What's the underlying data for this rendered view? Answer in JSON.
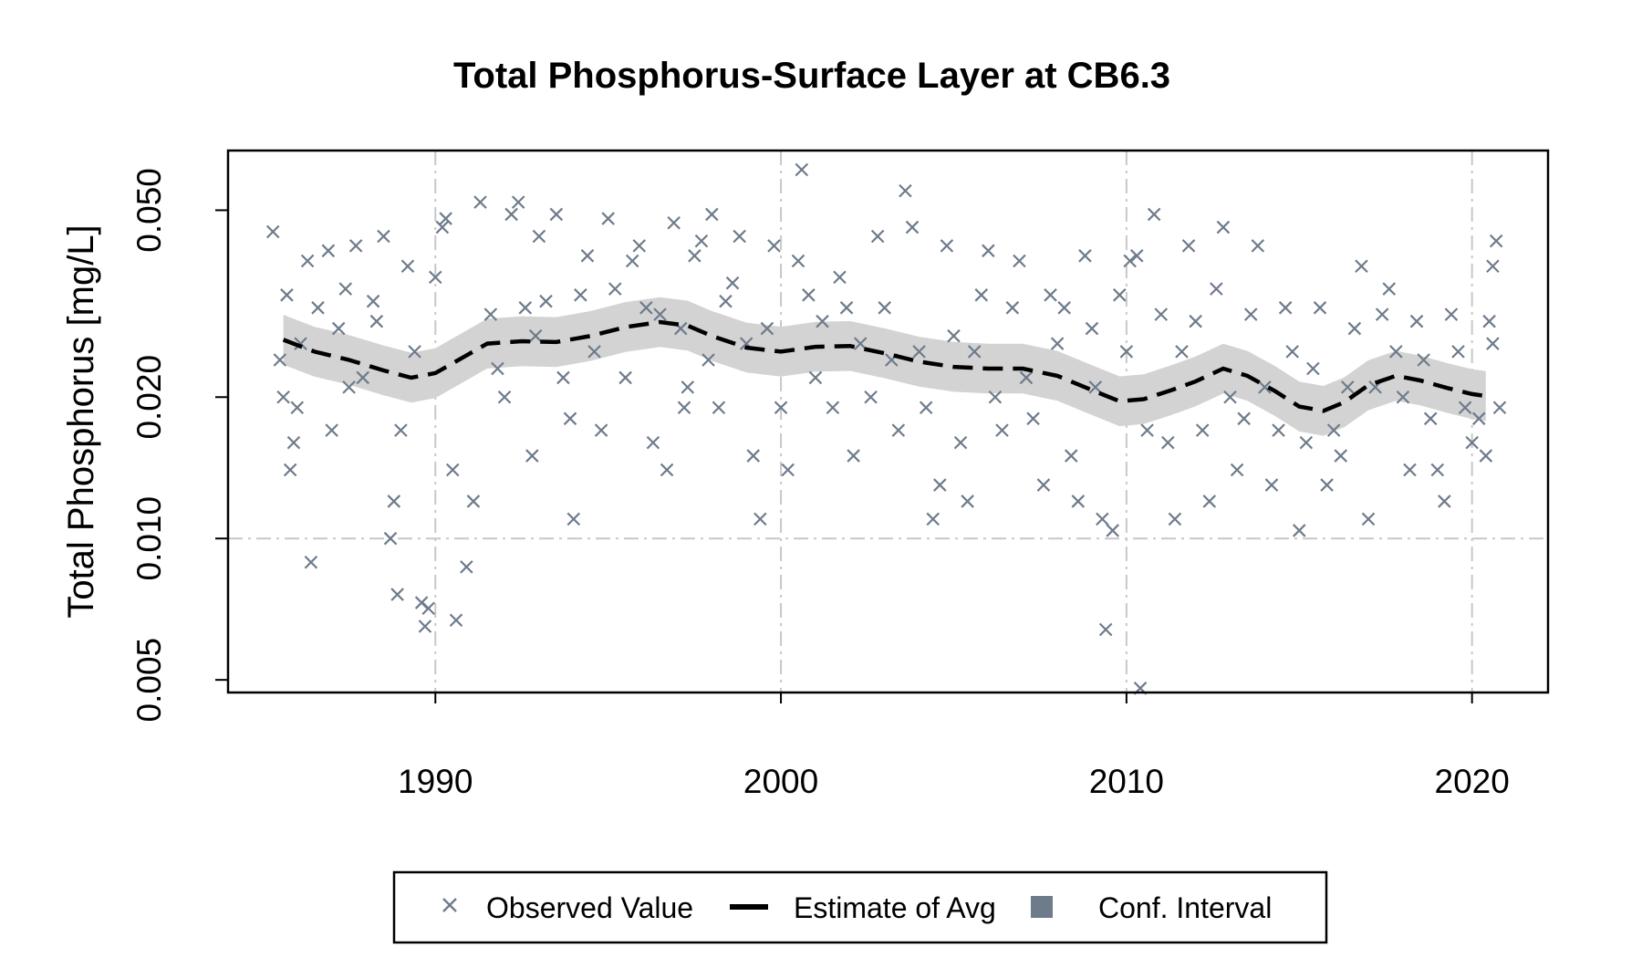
{
  "chart_data": {
    "type": "scatter",
    "title": "Total Phosphorus-Surface Layer at CB6.3",
    "ylabel": "Total Phosphorus [mg/L]",
    "xlabel": "",
    "y_scale": "log",
    "xlim": [
      1984.0,
      2022.2
    ],
    "ylim": [
      0.0047,
      0.067
    ],
    "x_ticks": [
      1990,
      2000,
      2010,
      2020
    ],
    "x_tick_labels": [
      "1990",
      "2000",
      "2010",
      "2020"
    ],
    "y_ticks": [
      0.005,
      0.01,
      0.02,
      0.05
    ],
    "y_tick_labels": [
      "0.005",
      "0.010",
      "0.020",
      "0.050"
    ],
    "gridlines": "dashed, at x ticks and y = 0.010",
    "legend": {
      "position": "bottom",
      "items": [
        {
          "label": "Observed Value",
          "symbol": "x-marker"
        },
        {
          "label": "Estimate of Avg",
          "symbol": "dashed-line"
        },
        {
          "label": "Conf. Interval",
          "symbol": "filled-square"
        }
      ]
    },
    "colors": {
      "observed": "#6e7b8b",
      "estimate": "#000000",
      "conf_interval": "#d3d3d3",
      "conf_interval_legend": "#6e7b8b",
      "grid": "#c8c8c8"
    },
    "series": [
      {
        "name": "Observed Value",
        "points": [
          [
            1985.3,
            0.045
          ],
          [
            1985.5,
            0.024
          ],
          [
            1985.6,
            0.02
          ],
          [
            1985.7,
            0.033
          ],
          [
            1985.8,
            0.014
          ],
          [
            1985.9,
            0.016
          ],
          [
            1986.0,
            0.019
          ],
          [
            1986.1,
            0.026
          ],
          [
            1986.3,
            0.039
          ],
          [
            1986.6,
            0.031
          ],
          [
            1986.9,
            0.041
          ],
          [
            1987.0,
            0.017
          ],
          [
            1987.2,
            0.028
          ],
          [
            1987.4,
            0.034
          ],
          [
            1987.7,
            0.042
          ],
          [
            1987.9,
            0.022
          ],
          [
            1988.2,
            0.032
          ],
          [
            1988.3,
            0.029
          ],
          [
            1988.5,
            0.044
          ],
          [
            1988.7,
            0.01
          ],
          [
            1988.8,
            0.012
          ],
          [
            1988.9,
            0.0076
          ],
          [
            1989.0,
            0.017
          ],
          [
            1989.2,
            0.038
          ],
          [
            1989.4,
            0.025
          ],
          [
            1989.6,
            0.0073
          ],
          [
            1989.7,
            0.0065
          ],
          [
            1989.8,
            0.0071
          ],
          [
            1990.0,
            0.036
          ],
          [
            1990.2,
            0.046
          ],
          [
            1990.3,
            0.048
          ],
          [
            1990.5,
            0.014
          ],
          [
            1990.6,
            0.0067
          ],
          [
            1990.9,
            0.0087
          ],
          [
            1991.1,
            0.012
          ],
          [
            1991.3,
            0.052
          ],
          [
            1991.6,
            0.03
          ],
          [
            1991.8,
            0.023
          ],
          [
            1992.0,
            0.02
          ],
          [
            1992.2,
            0.049
          ],
          [
            1992.4,
            0.052
          ],
          [
            1992.6,
            0.031
          ],
          [
            1992.8,
            0.015
          ],
          [
            1993.0,
            0.044
          ],
          [
            1993.2,
            0.032
          ],
          [
            1993.5,
            0.049
          ],
          [
            1993.7,
            0.022
          ],
          [
            1993.9,
            0.018
          ],
          [
            1994.0,
            0.011
          ],
          [
            1994.2,
            0.033
          ],
          [
            1994.4,
            0.04
          ],
          [
            1994.6,
            0.025
          ],
          [
            1994.8,
            0.017
          ],
          [
            1995.0,
            0.048
          ],
          [
            1995.2,
            0.034
          ],
          [
            1995.5,
            0.022
          ],
          [
            1995.7,
            0.039
          ],
          [
            1995.9,
            0.042
          ],
          [
            1996.1,
            0.031
          ],
          [
            1996.3,
            0.016
          ],
          [
            1996.5,
            0.03
          ],
          [
            1996.7,
            0.014
          ],
          [
            1996.9,
            0.047
          ],
          [
            1997.1,
            0.028
          ],
          [
            1997.3,
            0.021
          ],
          [
            1997.5,
            0.04
          ],
          [
            1997.7,
            0.043
          ],
          [
            1997.9,
            0.024
          ],
          [
            1998.0,
            0.049
          ],
          [
            1998.2,
            0.019
          ],
          [
            1998.4,
            0.032
          ],
          [
            1998.6,
            0.035
          ],
          [
            1998.8,
            0.044
          ],
          [
            1999.0,
            0.026
          ],
          [
            1999.2,
            0.015
          ],
          [
            1999.4,
            0.011
          ],
          [
            1999.6,
            0.028
          ],
          [
            1999.8,
            0.042
          ],
          [
            2000.0,
            0.019
          ],
          [
            2000.2,
            0.014
          ],
          [
            2000.5,
            0.039
          ],
          [
            2000.6,
            0.061
          ],
          [
            2000.8,
            0.033
          ],
          [
            2001.0,
            0.022
          ],
          [
            2001.2,
            0.029
          ],
          [
            2001.5,
            0.019
          ],
          [
            2001.7,
            0.036
          ],
          [
            2001.9,
            0.031
          ],
          [
            2002.1,
            0.015
          ],
          [
            2002.3,
            0.026
          ],
          [
            2002.6,
            0.02
          ],
          [
            2002.8,
            0.044
          ],
          [
            2003.0,
            0.031
          ],
          [
            2003.2,
            0.024
          ],
          [
            2003.4,
            0.017
          ],
          [
            2003.6,
            0.055
          ],
          [
            2003.8,
            0.046
          ],
          [
            2004.0,
            0.025
          ],
          [
            2004.2,
            0.019
          ],
          [
            2004.4,
            0.011
          ],
          [
            2004.6,
            0.013
          ],
          [
            2004.8,
            0.042
          ],
          [
            2005.0,
            0.027
          ],
          [
            2005.2,
            0.016
          ],
          [
            2005.4,
            0.012
          ],
          [
            2005.6,
            0.025
          ],
          [
            2005.8,
            0.033
          ],
          [
            2006.0,
            0.041
          ],
          [
            2006.2,
            0.02
          ],
          [
            2006.4,
            0.017
          ],
          [
            2006.7,
            0.031
          ],
          [
            2006.9,
            0.039
          ],
          [
            2007.1,
            0.022
          ],
          [
            2007.3,
            0.018
          ],
          [
            2007.6,
            0.013
          ],
          [
            2007.8,
            0.033
          ],
          [
            2008.0,
            0.026
          ],
          [
            2008.2,
            0.031
          ],
          [
            2008.4,
            0.015
          ],
          [
            2008.6,
            0.012
          ],
          [
            2008.8,
            0.04
          ],
          [
            2009.0,
            0.028
          ],
          [
            2009.1,
            0.021
          ],
          [
            2009.3,
            0.011
          ],
          [
            2009.4,
            0.0064
          ],
          [
            2009.6,
            0.0104
          ],
          [
            2009.8,
            0.033
          ],
          [
            2010.0,
            0.025
          ],
          [
            2010.1,
            0.039
          ],
          [
            2010.3,
            0.04
          ],
          [
            2010.4,
            0.0048
          ],
          [
            2010.6,
            0.017
          ],
          [
            2010.8,
            0.049
          ],
          [
            2011.0,
            0.03
          ],
          [
            2011.2,
            0.016
          ],
          [
            2011.4,
            0.011
          ],
          [
            2011.6,
            0.025
          ],
          [
            2011.8,
            0.042
          ],
          [
            2012.0,
            0.029
          ],
          [
            2012.2,
            0.017
          ],
          [
            2012.4,
            0.012
          ],
          [
            2012.6,
            0.034
          ],
          [
            2012.8,
            0.046
          ],
          [
            2013.0,
            0.02
          ],
          [
            2013.2,
            0.014
          ],
          [
            2013.4,
            0.018
          ],
          [
            2013.6,
            0.03
          ],
          [
            2013.8,
            0.042
          ],
          [
            2014.0,
            0.021
          ],
          [
            2014.2,
            0.013
          ],
          [
            2014.4,
            0.017
          ],
          [
            2014.6,
            0.031
          ],
          [
            2014.8,
            0.025
          ],
          [
            2015.0,
            0.0104
          ],
          [
            2015.2,
            0.016
          ],
          [
            2015.4,
            0.023
          ],
          [
            2015.6,
            0.031
          ],
          [
            2015.8,
            0.013
          ],
          [
            2016.0,
            0.017
          ],
          [
            2016.2,
            0.015
          ],
          [
            2016.4,
            0.021
          ],
          [
            2016.6,
            0.028
          ],
          [
            2016.8,
            0.038
          ],
          [
            2017.0,
            0.011
          ],
          [
            2017.2,
            0.021
          ],
          [
            2017.4,
            0.03
          ],
          [
            2017.6,
            0.034
          ],
          [
            2017.8,
            0.025
          ],
          [
            2018.0,
            0.02
          ],
          [
            2018.2,
            0.014
          ],
          [
            2018.4,
            0.029
          ],
          [
            2018.6,
            0.024
          ],
          [
            2018.8,
            0.018
          ],
          [
            2019.0,
            0.014
          ],
          [
            2019.2,
            0.012
          ],
          [
            2019.4,
            0.03
          ],
          [
            2019.6,
            0.025
          ],
          [
            2019.8,
            0.019
          ],
          [
            2020.0,
            0.016
          ],
          [
            2020.2,
            0.018
          ],
          [
            2020.4,
            0.015
          ],
          [
            2020.5,
            0.029
          ],
          [
            2020.6,
            0.038
          ],
          [
            2020.7,
            0.043
          ],
          [
            2020.8,
            0.019
          ],
          [
            2020.6,
            0.026
          ],
          [
            1986.4,
            0.0089
          ],
          [
            1987.5,
            0.021
          ],
          [
            1992.9,
            0.027
          ],
          [
            1997.2,
            0.019
          ]
        ]
      },
      {
        "name": "Estimate of Avg",
        "points": [
          [
            1985.6,
            0.0265
          ],
          [
            1986.5,
            0.025
          ],
          [
            1987.5,
            0.024
          ],
          [
            1988.5,
            0.0228
          ],
          [
            1989.3,
            0.022
          ],
          [
            1990.0,
            0.0225
          ],
          [
            1990.8,
            0.0243
          ],
          [
            1991.5,
            0.026
          ],
          [
            1992.5,
            0.0263
          ],
          [
            1993.5,
            0.0262
          ],
          [
            1994.5,
            0.027
          ],
          [
            1995.5,
            0.0282
          ],
          [
            1996.5,
            0.0289
          ],
          [
            1997.3,
            0.0284
          ],
          [
            1998.0,
            0.027
          ],
          [
            1999.0,
            0.0255
          ],
          [
            2000.0,
            0.025
          ],
          [
            2001.0,
            0.0256
          ],
          [
            2002.0,
            0.0257
          ],
          [
            2003.0,
            0.0248
          ],
          [
            2004.0,
            0.0238
          ],
          [
            2005.0,
            0.0232
          ],
          [
            2006.0,
            0.023
          ],
          [
            2007.0,
            0.023
          ],
          [
            2008.0,
            0.0222
          ],
          [
            2009.0,
            0.0207
          ],
          [
            2009.8,
            0.0196
          ],
          [
            2010.5,
            0.0198
          ],
          [
            2011.3,
            0.0207
          ],
          [
            2012.0,
            0.0216
          ],
          [
            2012.8,
            0.023
          ],
          [
            2013.5,
            0.0222
          ],
          [
            2014.3,
            0.0206
          ],
          [
            2015.0,
            0.0191
          ],
          [
            2015.7,
            0.0187
          ],
          [
            2016.3,
            0.0195
          ],
          [
            2017.0,
            0.0212
          ],
          [
            2017.8,
            0.0222
          ],
          [
            2018.5,
            0.0217
          ],
          [
            2019.3,
            0.0209
          ],
          [
            2020.0,
            0.0203
          ],
          [
            2020.4,
            0.0201
          ]
        ]
      }
    ],
    "conf_interval_halfwidth_ratio": 1.13
  }
}
